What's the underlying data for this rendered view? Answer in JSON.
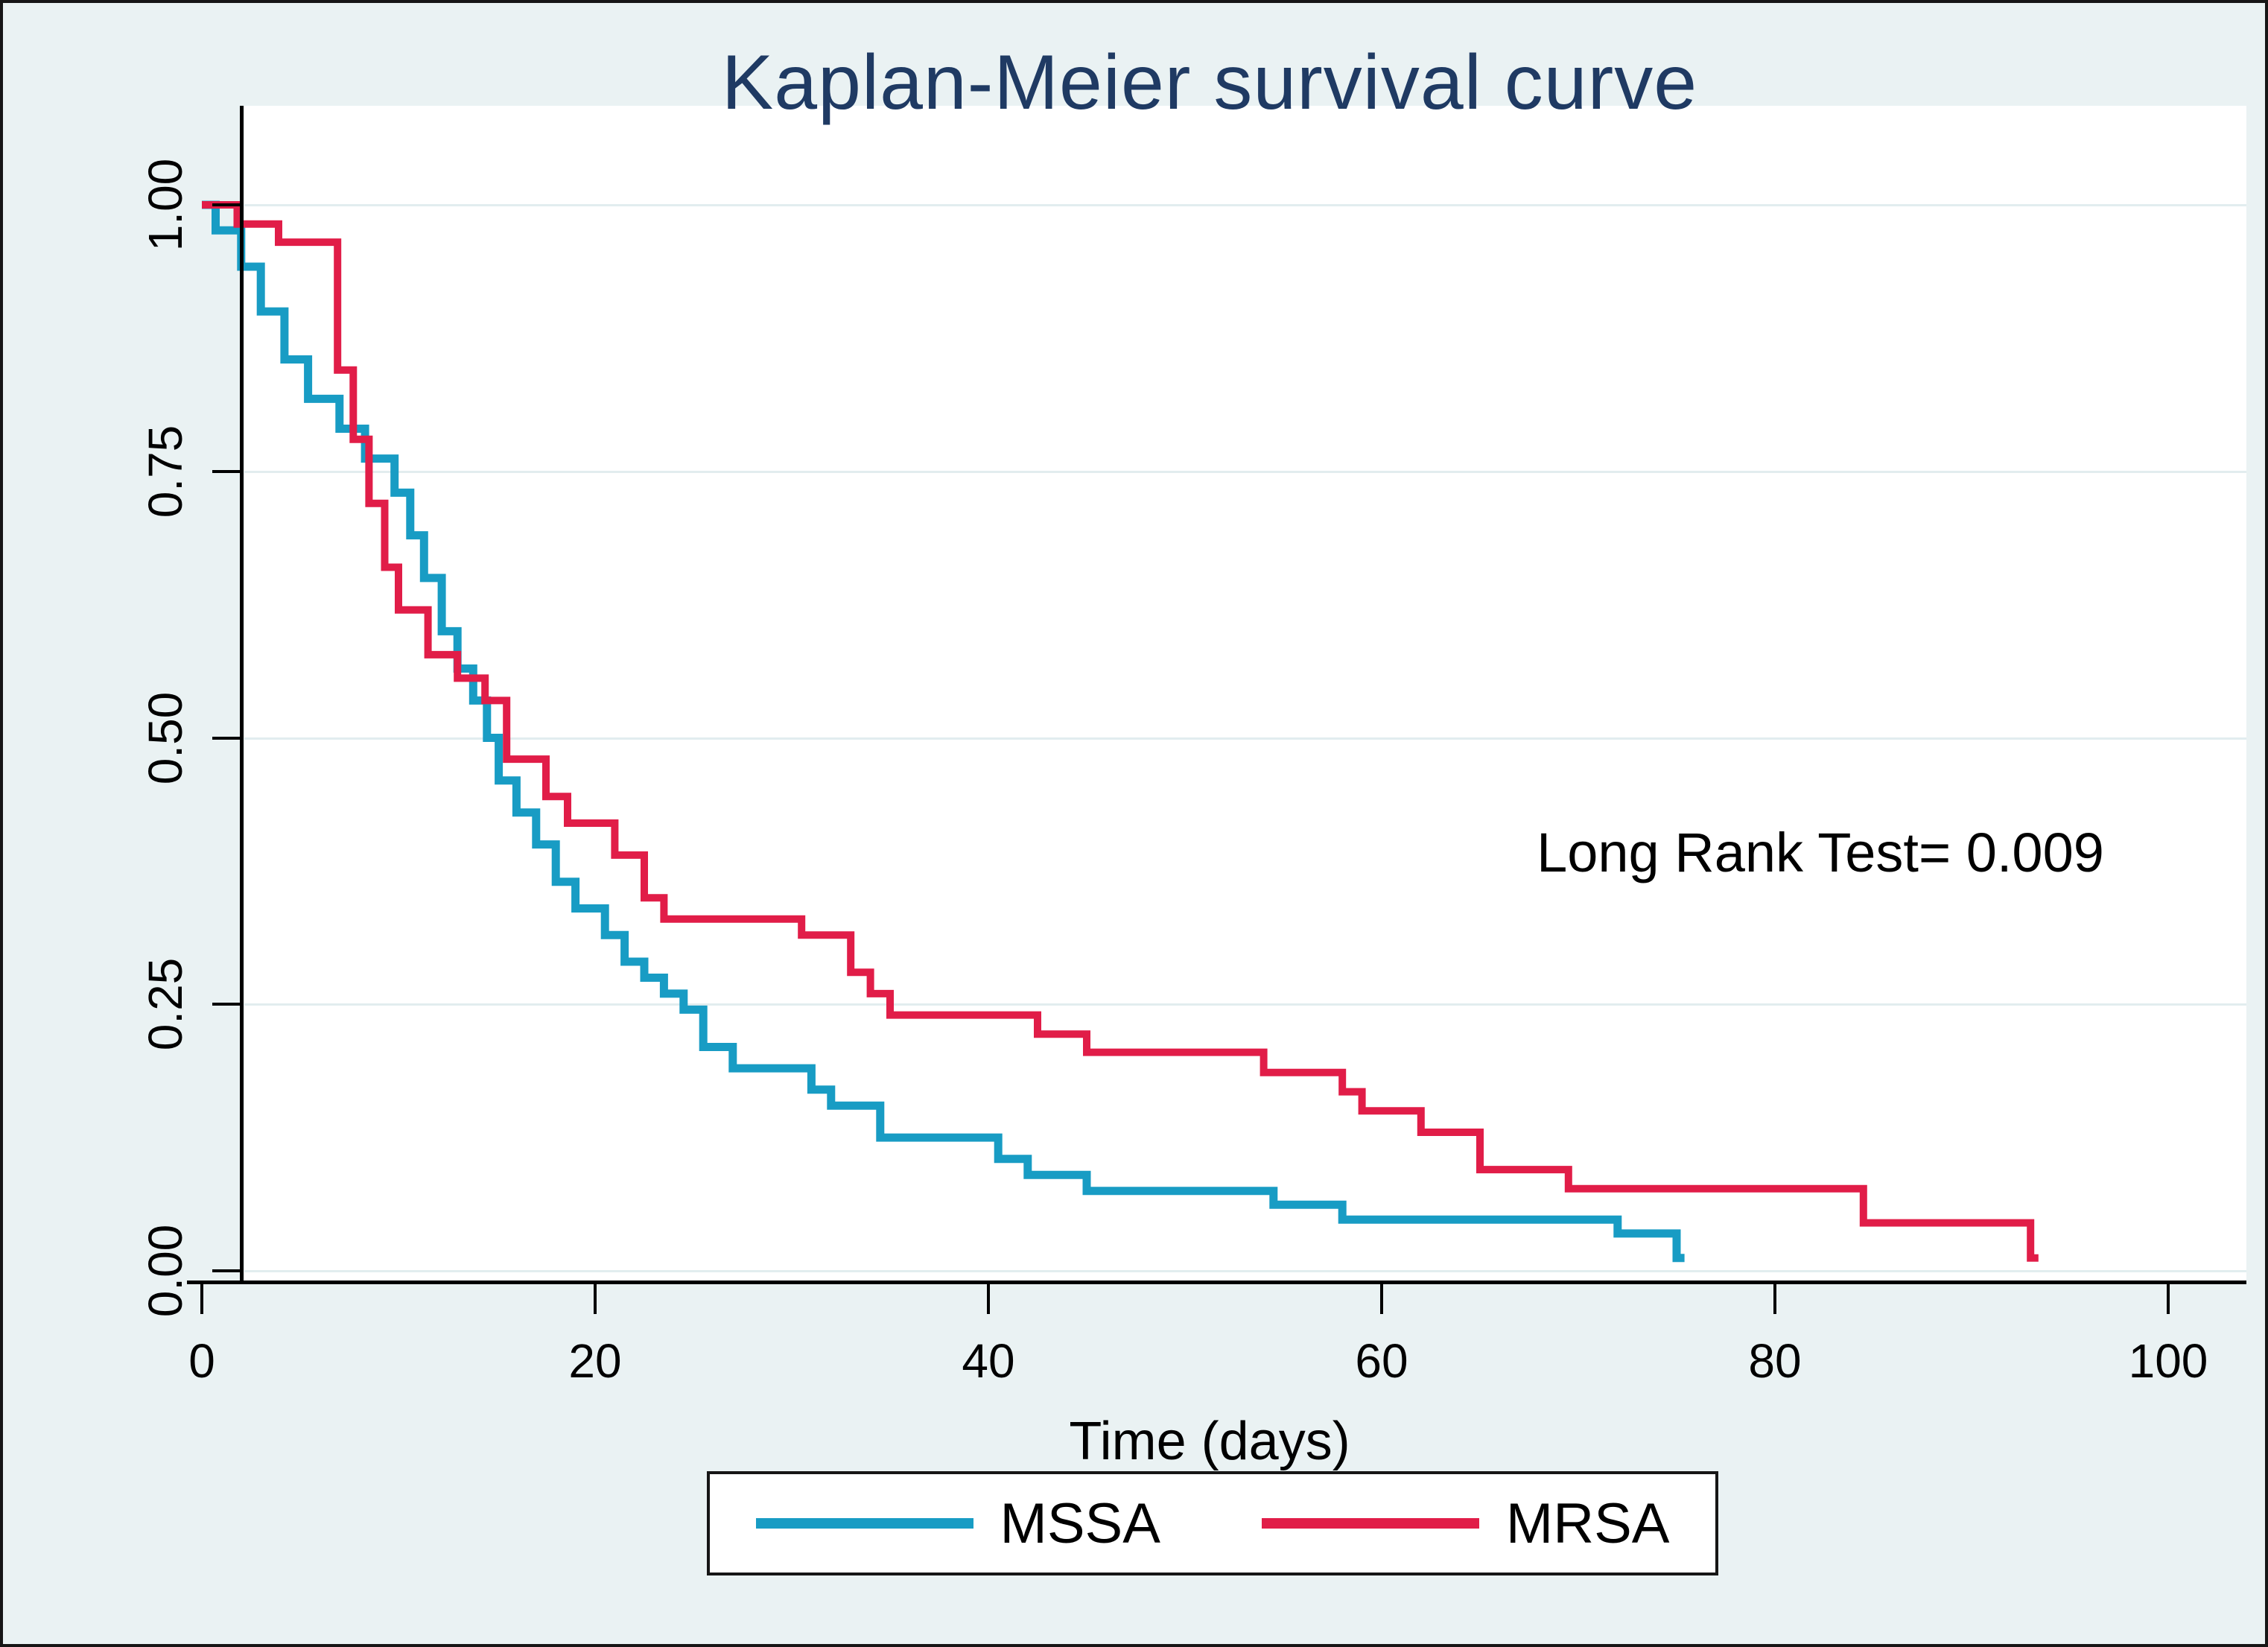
{
  "figure": {
    "title": "Kaplan-Meier survival curve",
    "annotation": "Long Rank Test= 0.009",
    "x_axis": {
      "label": "Time (days)",
      "tick_labels": [
        "0",
        "20",
        "40",
        "60",
        "80",
        "100"
      ],
      "tick_values": [
        0,
        20,
        40,
        60,
        80,
        100
      ]
    },
    "y_axis": {
      "label": "",
      "tick_labels": [
        "1.00",
        "0.75",
        "0.50",
        "0.25",
        "0.00"
      ],
      "tick_values": [
        1.0,
        0.75,
        0.5,
        0.25,
        0.0
      ]
    },
    "legend": [
      {
        "label": "MSSA",
        "color": "#189cc4"
      },
      {
        "label": "MRSA",
        "color": "#e11d48"
      }
    ]
  },
  "colors": {
    "background": "#eaf2f3",
    "plot_background": "#ffffff",
    "gridline": "#e2edef",
    "axis": "#000000",
    "title": "#1f3a63",
    "mssa": "#189cc4",
    "mrsa": "#e11d48"
  },
  "chart_data": {
    "type": "line",
    "subtype": "kaplan-meier-step",
    "title": "Kaplan-Meier survival curve",
    "xlabel": "Time (days)",
    "ylabel": "",
    "xlim": [
      0,
      100
    ],
    "ylim": [
      0.0,
      1.0
    ],
    "grid": "horizontal",
    "legend_position": "bottom",
    "annotation": "Long Rank Test= 0.009",
    "series": [
      {
        "name": "MSSA",
        "color": "#189cc4",
        "end_t": 75.4,
        "steps": [
          [
            0,
            1.0
          ],
          [
            0.7,
            0.976
          ],
          [
            2,
            0.942
          ],
          [
            3,
            0.9
          ],
          [
            4.2,
            0.855
          ],
          [
            5.4,
            0.818
          ],
          [
            7,
            0.79
          ],
          [
            8.3,
            0.762
          ],
          [
            9.8,
            0.73
          ],
          [
            10.6,
            0.69
          ],
          [
            11.3,
            0.65
          ],
          [
            12.2,
            0.6
          ],
          [
            13,
            0.565
          ],
          [
            13.8,
            0.535
          ],
          [
            14.5,
            0.5
          ],
          [
            15.1,
            0.46
          ],
          [
            16,
            0.43
          ],
          [
            17,
            0.4
          ],
          [
            18,
            0.365
          ],
          [
            19,
            0.34
          ],
          [
            20.5,
            0.315
          ],
          [
            21.5,
            0.29
          ],
          [
            22.5,
            0.275
          ],
          [
            23.5,
            0.26
          ],
          [
            24.5,
            0.245
          ],
          [
            25.5,
            0.21
          ],
          [
            27,
            0.19
          ],
          [
            31,
            0.17
          ],
          [
            32,
            0.155
          ],
          [
            34.5,
            0.125
          ],
          [
            40.5,
            0.105
          ],
          [
            42,
            0.09
          ],
          [
            45,
            0.075
          ],
          [
            54.5,
            0.062
          ],
          [
            58,
            0.048
          ],
          [
            72,
            0.035
          ],
          [
            75,
            0.012
          ]
        ]
      },
      {
        "name": "MRSA",
        "color": "#e11d48",
        "end_t": 93.4,
        "steps": [
          [
            0,
            1.0
          ],
          [
            1.8,
            0.982
          ],
          [
            3.9,
            0.965
          ],
          [
            6.9,
            0.845
          ],
          [
            7.7,
            0.78
          ],
          [
            8.5,
            0.72
          ],
          [
            9.3,
            0.66
          ],
          [
            10,
            0.62
          ],
          [
            11.5,
            0.578
          ],
          [
            13,
            0.556
          ],
          [
            14.4,
            0.535
          ],
          [
            15.5,
            0.48
          ],
          [
            17.5,
            0.445
          ],
          [
            18.6,
            0.42
          ],
          [
            21,
            0.39
          ],
          [
            22.5,
            0.35
          ],
          [
            23.5,
            0.33
          ],
          [
            30.5,
            0.315
          ],
          [
            33,
            0.28
          ],
          [
            34,
            0.26
          ],
          [
            35,
            0.24
          ],
          [
            42.5,
            0.222
          ],
          [
            45,
            0.205
          ],
          [
            54,
            0.186
          ],
          [
            58,
            0.168
          ],
          [
            59,
            0.15
          ],
          [
            62,
            0.13
          ],
          [
            65,
            0.095
          ],
          [
            69.5,
            0.077
          ],
          [
            84.5,
            0.045
          ],
          [
            93,
            0.012
          ]
        ]
      }
    ]
  }
}
